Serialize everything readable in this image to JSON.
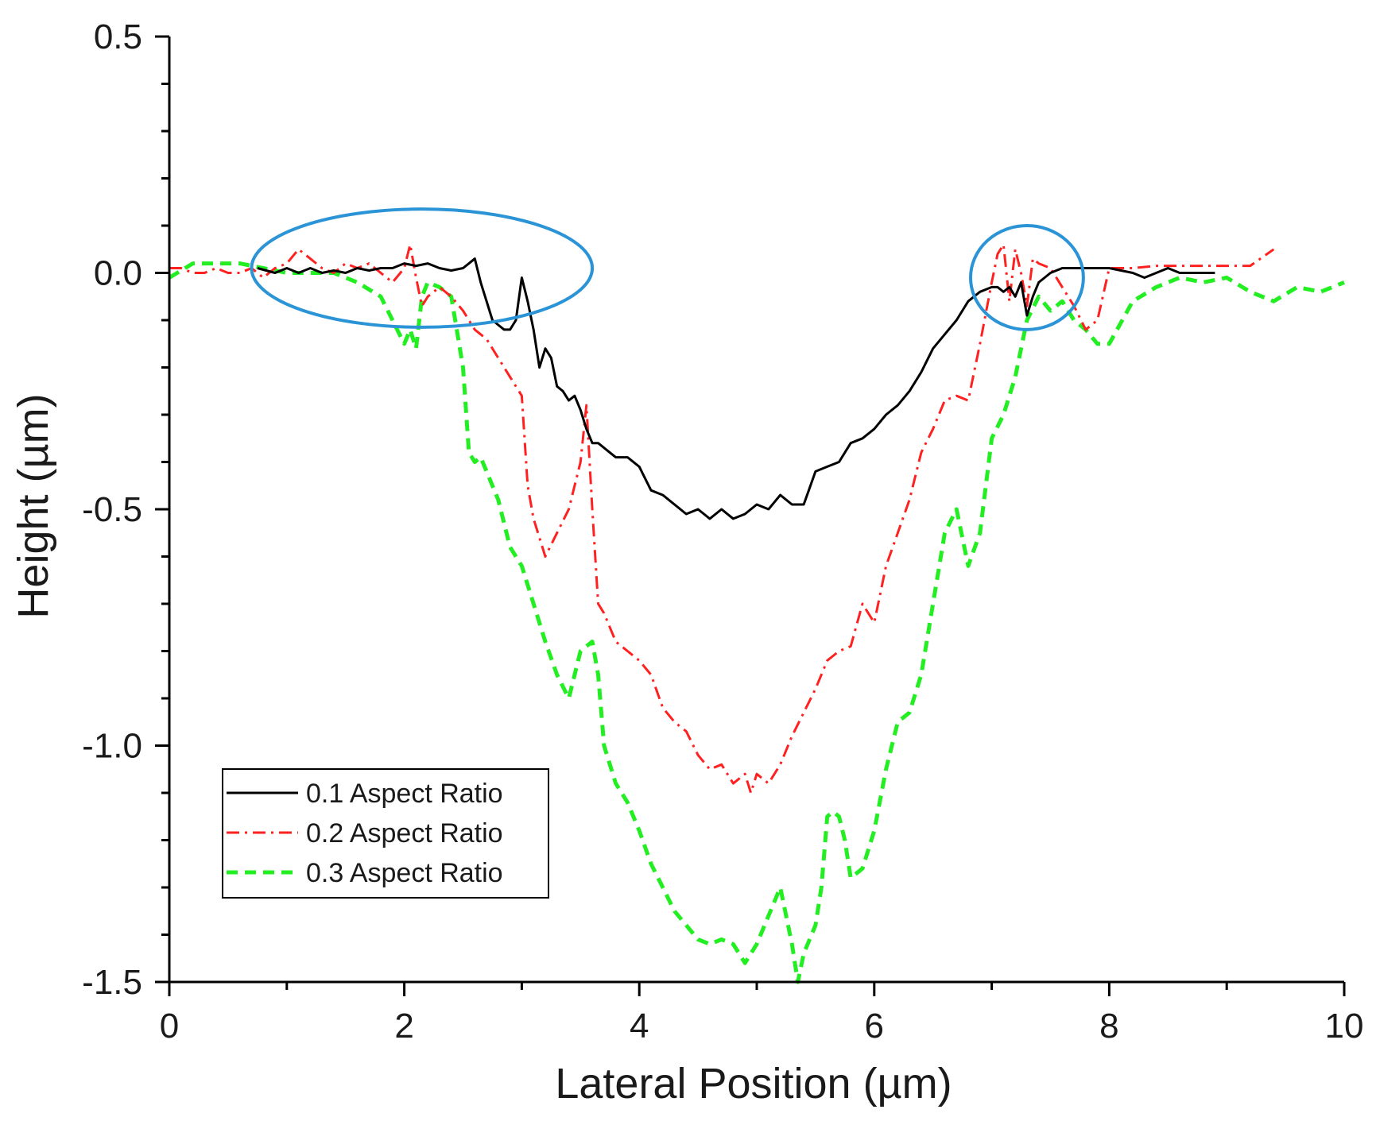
{
  "chart_data": {
    "type": "line",
    "title": "",
    "xlabel": "Lateral Position (µm)",
    "ylabel": "Height (µm)",
    "xlim": [
      0,
      10
    ],
    "ylim": [
      -1.5,
      0.5
    ],
    "xticks": [
      0,
      2,
      4,
      6,
      8,
      10
    ],
    "xtick_labels": [
      "0",
      "2",
      "4",
      "6",
      "8",
      "10"
    ],
    "yticks": [
      0.5,
      0.0,
      -0.5,
      -1.0,
      -1.5
    ],
    "ytick_labels": [
      "0.5",
      "0.0",
      "-0.5",
      "-1.0",
      "-1.5"
    ],
    "grid": false,
    "legend_position": "bottom-left",
    "series": [
      {
        "name": "0.1 Aspect Ratio",
        "color": "#000000",
        "dash": "solid",
        "x": [
          0.75,
          0.9,
          1.0,
          1.1,
          1.2,
          1.3,
          1.4,
          1.5,
          1.6,
          1.7,
          1.8,
          1.9,
          2.0,
          2.1,
          2.2,
          2.3,
          2.4,
          2.5,
          2.55,
          2.6,
          2.65,
          2.7,
          2.75,
          2.8,
          2.85,
          2.9,
          2.95,
          3.0,
          3.05,
          3.1,
          3.15,
          3.2,
          3.25,
          3.3,
          3.35,
          3.4,
          3.45,
          3.5,
          3.55,
          3.6,
          3.65,
          3.7,
          3.8,
          3.9,
          4.0,
          4.1,
          4.2,
          4.3,
          4.4,
          4.5,
          4.6,
          4.7,
          4.8,
          4.9,
          5.0,
          5.1,
          5.2,
          5.3,
          5.4,
          5.5,
          5.6,
          5.7,
          5.8,
          5.9,
          6.0,
          6.1,
          6.2,
          6.3,
          6.4,
          6.5,
          6.6,
          6.7,
          6.8,
          6.9,
          7.0,
          7.05,
          7.1,
          7.15,
          7.2,
          7.25,
          7.3,
          7.35,
          7.4,
          7.45,
          7.5,
          7.55,
          7.6,
          7.65,
          7.7,
          7.8,
          7.9,
          8.0,
          8.1,
          8.2,
          8.3,
          8.4,
          8.5,
          8.6,
          8.7,
          8.8,
          8.9
        ],
        "y": [
          0.01,
          0.0,
          0.01,
          0.0,
          0.01,
          0.0,
          0.005,
          0.0,
          0.01,
          0.005,
          0.01,
          0.01,
          0.02,
          0.015,
          0.02,
          0.01,
          0.005,
          0.01,
          0.02,
          0.03,
          -0.02,
          -0.06,
          -0.1,
          -0.11,
          -0.12,
          -0.12,
          -0.1,
          -0.01,
          -0.06,
          -0.12,
          -0.2,
          -0.16,
          -0.18,
          -0.24,
          -0.25,
          -0.27,
          -0.26,
          -0.29,
          -0.33,
          -0.36,
          -0.36,
          -0.37,
          -0.39,
          -0.39,
          -0.41,
          -0.46,
          -0.47,
          -0.49,
          -0.51,
          -0.5,
          -0.52,
          -0.5,
          -0.52,
          -0.51,
          -0.49,
          -0.5,
          -0.47,
          -0.49,
          -0.49,
          -0.42,
          -0.41,
          -0.4,
          -0.36,
          -0.35,
          -0.33,
          -0.3,
          -0.28,
          -0.25,
          -0.21,
          -0.16,
          -0.13,
          -0.1,
          -0.06,
          -0.04,
          -0.03,
          -0.03,
          -0.04,
          -0.03,
          -0.05,
          -0.02,
          -0.09,
          -0.05,
          -0.02,
          -0.01,
          0.0,
          0.005,
          0.01,
          0.01,
          0.01,
          0.01,
          0.01,
          0.01,
          0.005,
          0.0,
          -0.01,
          0.0,
          0.01,
          0.0,
          0.0,
          0.0,
          0.0
        ]
      },
      {
        "name": "0.2 Aspect Ratio",
        "color": "#ff2020",
        "dash": "dashdot",
        "x": [
          0.0,
          0.1,
          0.2,
          0.3,
          0.4,
          0.5,
          0.6,
          0.7,
          0.8,
          0.9,
          1.0,
          1.1,
          1.2,
          1.3,
          1.4,
          1.5,
          1.6,
          1.7,
          1.8,
          1.9,
          2.0,
          2.05,
          2.1,
          2.15,
          2.2,
          2.3,
          2.4,
          2.5,
          2.6,
          2.7,
          2.8,
          2.9,
          3.0,
          3.05,
          3.1,
          3.2,
          3.3,
          3.4,
          3.5,
          3.55,
          3.6,
          3.65,
          3.7,
          3.8,
          3.9,
          4.0,
          4.1,
          4.2,
          4.3,
          4.4,
          4.5,
          4.6,
          4.7,
          4.8,
          4.9,
          4.95,
          5.0,
          5.1,
          5.2,
          5.3,
          5.4,
          5.5,
          5.6,
          5.7,
          5.8,
          5.9,
          6.0,
          6.1,
          6.2,
          6.3,
          6.4,
          6.5,
          6.6,
          6.7,
          6.8,
          6.9,
          7.0,
          7.05,
          7.1,
          7.15,
          7.2,
          7.25,
          7.3,
          7.35,
          7.4,
          7.5,
          7.6,
          7.7,
          7.8,
          7.9,
          8.0,
          8.2,
          8.4,
          8.6,
          8.8,
          9.0,
          9.2,
          9.4
        ],
        "y": [
          0.01,
          0.01,
          0.0,
          0.0,
          0.01,
          0.0,
          0.0,
          0.01,
          -0.01,
          0.01,
          0.02,
          0.05,
          0.03,
          0.01,
          0.0,
          0.02,
          0.01,
          0.02,
          0.0,
          -0.02,
          0.01,
          0.06,
          -0.01,
          -0.07,
          -0.05,
          -0.03,
          -0.05,
          -0.08,
          -0.12,
          -0.14,
          -0.18,
          -0.22,
          -0.26,
          -0.45,
          -0.52,
          -0.6,
          -0.55,
          -0.5,
          -0.4,
          -0.28,
          -0.5,
          -0.7,
          -0.72,
          -0.78,
          -0.8,
          -0.82,
          -0.85,
          -0.92,
          -0.95,
          -0.97,
          -1.02,
          -1.05,
          -1.04,
          -1.08,
          -1.06,
          -1.1,
          -1.06,
          -1.08,
          -1.04,
          -0.98,
          -0.93,
          -0.88,
          -0.82,
          -0.8,
          -0.79,
          -0.7,
          -0.74,
          -0.62,
          -0.55,
          -0.48,
          -0.38,
          -0.33,
          -0.27,
          -0.26,
          -0.27,
          -0.15,
          -0.02,
          0.04,
          0.06,
          -0.06,
          0.05,
          0.0,
          -0.07,
          0.03,
          0.02,
          0.01,
          -0.03,
          -0.07,
          -0.12,
          -0.1,
          0.01,
          0.01,
          0.015,
          0.015,
          0.015,
          0.015,
          0.015,
          0.05
        ]
      },
      {
        "name": "0.3 Aspect Ratio",
        "color": "#22ee22",
        "dash": "dashed",
        "x": [
          0.0,
          0.2,
          0.4,
          0.6,
          0.8,
          1.0,
          1.2,
          1.4,
          1.6,
          1.8,
          2.0,
          2.05,
          2.1,
          2.15,
          2.2,
          2.3,
          2.4,
          2.5,
          2.55,
          2.6,
          2.65,
          2.7,
          2.8,
          2.9,
          3.0,
          3.1,
          3.2,
          3.3,
          3.4,
          3.5,
          3.6,
          3.65,
          3.7,
          3.8,
          3.9,
          4.0,
          4.1,
          4.2,
          4.3,
          4.4,
          4.5,
          4.6,
          4.7,
          4.8,
          4.9,
          5.0,
          5.1,
          5.2,
          5.3,
          5.35,
          5.4,
          5.5,
          5.55,
          5.6,
          5.65,
          5.7,
          5.75,
          5.8,
          5.9,
          6.0,
          6.1,
          6.2,
          6.3,
          6.4,
          6.5,
          6.6,
          6.7,
          6.8,
          6.9,
          7.0,
          7.1,
          7.2,
          7.3,
          7.4,
          7.5,
          7.6,
          7.7,
          7.8,
          7.9,
          8.0,
          8.2,
          8.4,
          8.6,
          8.8,
          9.0,
          9.2,
          9.4,
          9.6,
          9.8,
          10.0
        ],
        "y": [
          -0.01,
          0.02,
          0.02,
          0.02,
          0.01,
          0.0,
          0.0,
          0.0,
          -0.02,
          -0.05,
          -0.15,
          -0.12,
          -0.16,
          -0.05,
          -0.02,
          -0.03,
          -0.05,
          -0.2,
          -0.38,
          -0.4,
          -0.39,
          -0.42,
          -0.48,
          -0.58,
          -0.62,
          -0.7,
          -0.78,
          -0.85,
          -0.9,
          -0.8,
          -0.78,
          -0.85,
          -1.0,
          -1.08,
          -1.12,
          -1.18,
          -1.25,
          -1.3,
          -1.35,
          -1.38,
          -1.41,
          -1.42,
          -1.41,
          -1.42,
          -1.46,
          -1.42,
          -1.36,
          -1.3,
          -1.42,
          -1.5,
          -1.44,
          -1.38,
          -1.3,
          -1.15,
          -1.14,
          -1.15,
          -1.2,
          -1.28,
          -1.26,
          -1.18,
          -1.05,
          -0.95,
          -0.93,
          -0.85,
          -0.7,
          -0.55,
          -0.5,
          -0.62,
          -0.55,
          -0.35,
          -0.3,
          -0.22,
          -0.1,
          -0.05,
          -0.08,
          -0.06,
          -0.1,
          -0.12,
          -0.15,
          -0.15,
          -0.06,
          -0.03,
          -0.01,
          -0.02,
          -0.01,
          -0.04,
          -0.06,
          -0.03,
          -0.04,
          -0.02
        ]
      }
    ],
    "annotations": [
      {
        "type": "ellipse",
        "color": "#2b94d6",
        "cx": 2.15,
        "cy": 0.01,
        "rx": 1.45,
        "ry": 0.125
      },
      {
        "type": "circle",
        "color": "#2b94d6",
        "cx": 7.3,
        "cy": -0.01,
        "rx": 0.48,
        "ry": 0.11
      }
    ]
  }
}
